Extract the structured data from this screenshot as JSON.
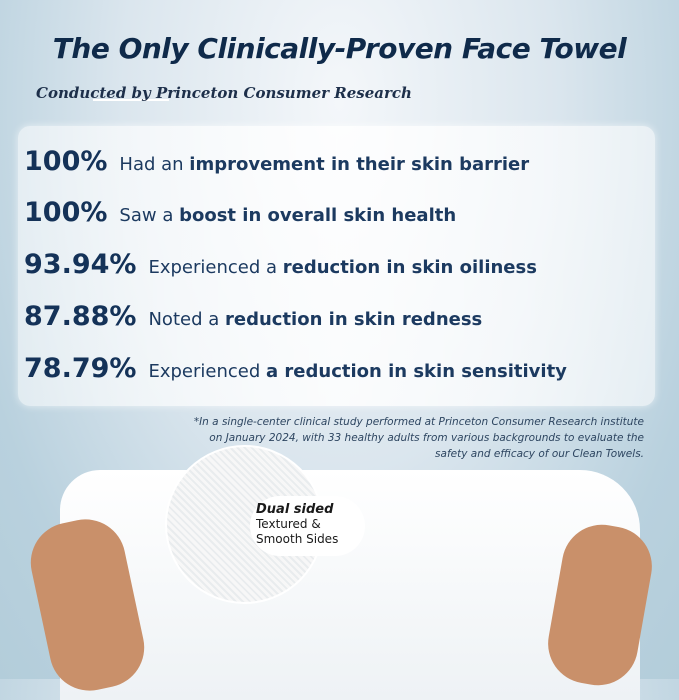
{
  "title": "The Only Clinically-Proven Face Towel",
  "subtitle": "Conducted by Princeton Consumer Research",
  "stats": [
    {
      "value": "100%",
      "prefix": "Had an ",
      "bold": "improvement in their skin barrier"
    },
    {
      "value": "100%",
      "prefix": "Saw a ",
      "bold": "boost in overall skin health"
    },
    {
      "value": "93.94%",
      "prefix": "Experienced a ",
      "bold": "reduction in skin oiliness"
    },
    {
      "value": "87.88%",
      "prefix": "Noted a ",
      "bold": "reduction in skin redness"
    },
    {
      "value": "78.79%",
      "prefix": "Experienced ",
      "bold": "a reduction in skin sensitivity"
    }
  ],
  "footnote": "*In a single-center clinical study performed at Princeton Consumer Research institute on January 2024, with 33 healthy adults from various backgrounds to evaluate the safety and efficacy of our Clean Towels.",
  "badge": {
    "title": "Dual sided",
    "line1": "Textured &",
    "line2": "Smooth Sides"
  }
}
